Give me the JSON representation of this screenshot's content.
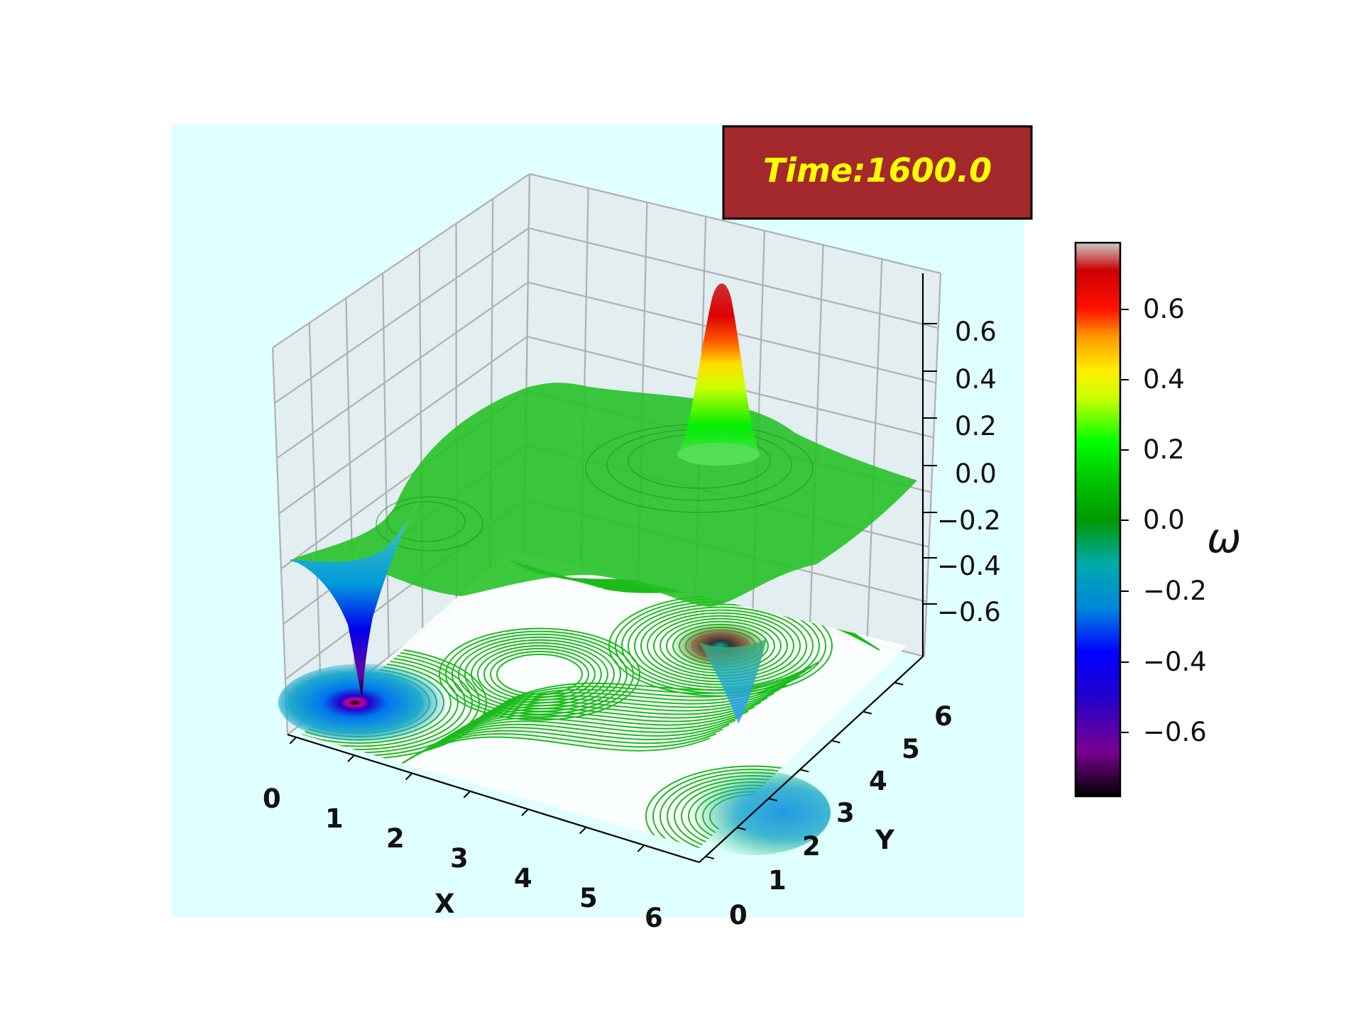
{
  "chart_data": {
    "type": "surface",
    "annotation": "Time:1600.0",
    "x_label": "X",
    "y_label": "Y",
    "x_ticks": [
      "0",
      "1",
      "2",
      "3",
      "4",
      "5",
      "6"
    ],
    "y_ticks": [
      "0",
      "1",
      "2",
      "3",
      "4",
      "5",
      "6"
    ],
    "z_ticks": [
      "0.6",
      "0.4",
      "0.2",
      "0.0",
      "−0.2",
      "−0.4",
      "−0.6"
    ],
    "z_range": [
      -0.75,
      0.75
    ],
    "colorbar": {
      "label": "ω",
      "ticks": [
        "0.6",
        "0.4",
        "0.2",
        "0.0",
        "−0.2",
        "−0.4",
        "−0.6"
      ],
      "range": [
        -0.78,
        0.78
      ],
      "colormap": "nipy_spectral-like"
    },
    "features": [
      {
        "name": "positive vortex peak",
        "x": 4.8,
        "y": 4.8,
        "omega": 0.75
      },
      {
        "name": "negative vortex trough",
        "x": 0.3,
        "y": 0.5,
        "omega": -0.75
      },
      {
        "name": "negative vortex trough",
        "x": 5.0,
        "y": 2.8,
        "omega": -0.4
      }
    ],
    "background_plane_omega": 0.0,
    "floor_streamlines": true,
    "grid": true
  },
  "style": {
    "axes_bg": "#e0ffff",
    "label_box_bg": "#a3292c",
    "label_text": "#ffff00",
    "surface_green": "#22c022",
    "streamline_green": "#10b810"
  }
}
